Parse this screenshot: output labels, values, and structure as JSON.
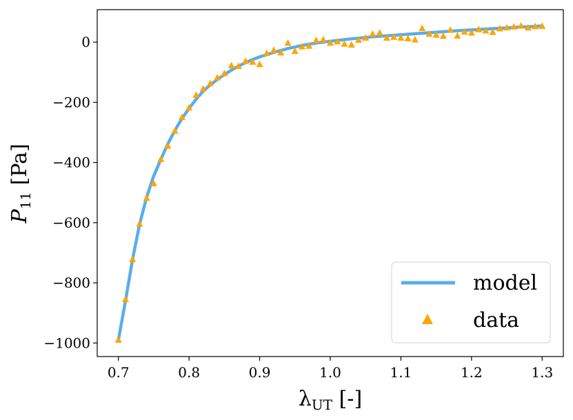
{
  "chart_data": {
    "type": "line",
    "title": "",
    "xlabel": "λUT [-]",
    "xlabel_main": "λ",
    "xlabel_sub": "UT",
    "xlabel_tail": " [-]",
    "ylabel": "P11 [Pa]",
    "ylabel_main": "P",
    "ylabel_sub": "11",
    "ylabel_tail": " [Pa]",
    "xlim": [
      0.67,
      1.33
    ],
    "ylim": [
      -1045,
      108
    ],
    "x_ticks": [
      0.7,
      0.8,
      0.9,
      1.0,
      1.1,
      1.2,
      1.3
    ],
    "x_tick_labels": [
      "0.7",
      "0.8",
      "0.9",
      "1.0",
      "1.1",
      "1.2",
      "1.3"
    ],
    "y_ticks": [
      -1000,
      -800,
      -600,
      -400,
      -200,
      0
    ],
    "y_tick_labels": [
      "−1000",
      "−800",
      "−600",
      "−400",
      "−200",
      "0"
    ],
    "grid": false,
    "legend_position": "bottom-right",
    "series": [
      {
        "name": "model",
        "kind": "line",
        "color": "#5aade8",
        "x": [
          0.7,
          0.71,
          0.72,
          0.73,
          0.74,
          0.75,
          0.76,
          0.77,
          0.78,
          0.79,
          0.8,
          0.81,
          0.82,
          0.83,
          0.84,
          0.85,
          0.86,
          0.87,
          0.88,
          0.89,
          0.9,
          0.92,
          0.94,
          0.96,
          0.98,
          1.0,
          1.03,
          1.06,
          1.09,
          1.12,
          1.15,
          1.18,
          1.21,
          1.24,
          1.27,
          1.3
        ],
        "y": [
          -990,
          -860,
          -722,
          -605,
          -515,
          -445,
          -390,
          -338,
          -293,
          -254,
          -220,
          -190,
          -163,
          -142,
          -124,
          -108,
          -93,
          -80,
          -68,
          -58,
          -49,
          -34,
          -21,
          -11,
          -3,
          3,
          11,
          18,
          23,
          28,
          33,
          38,
          42,
          46,
          50,
          54
        ]
      },
      {
        "name": "data",
        "kind": "scatter",
        "marker": "triangle",
        "color": "#ffa500",
        "x": [
          0.7,
          0.71,
          0.72,
          0.73,
          0.74,
          0.75,
          0.76,
          0.77,
          0.78,
          0.79,
          0.8,
          0.81,
          0.82,
          0.83,
          0.84,
          0.85,
          0.86,
          0.87,
          0.88,
          0.89,
          0.9,
          0.91,
          0.92,
          0.93,
          0.94,
          0.95,
          0.96,
          0.97,
          0.98,
          0.99,
          1.0,
          1.01,
          1.02,
          1.03,
          1.04,
          1.05,
          1.06,
          1.07,
          1.08,
          1.09,
          1.1,
          1.11,
          1.12,
          1.13,
          1.14,
          1.15,
          1.16,
          1.17,
          1.18,
          1.19,
          1.2,
          1.21,
          1.22,
          1.23,
          1.24,
          1.25,
          1.26,
          1.27,
          1.28,
          1.29,
          1.3
        ],
        "y": [
          -990,
          -855,
          -722,
          -604,
          -518,
          -470,
          -389,
          -345,
          -295,
          -250,
          -218,
          -176,
          -155,
          -137,
          -118,
          -104,
          -78,
          -80,
          -63,
          -66,
          -74,
          -37,
          -27,
          -35,
          -3,
          -30,
          -15,
          -13,
          6,
          8,
          -3,
          2,
          -6,
          -9,
          7,
          14,
          27,
          31,
          14,
          17,
          14,
          12,
          8,
          46,
          27,
          24,
          20,
          40,
          21,
          34,
          31,
          42,
          38,
          33,
          45,
          48,
          51,
          54,
          48,
          52,
          53
        ]
      }
    ]
  }
}
